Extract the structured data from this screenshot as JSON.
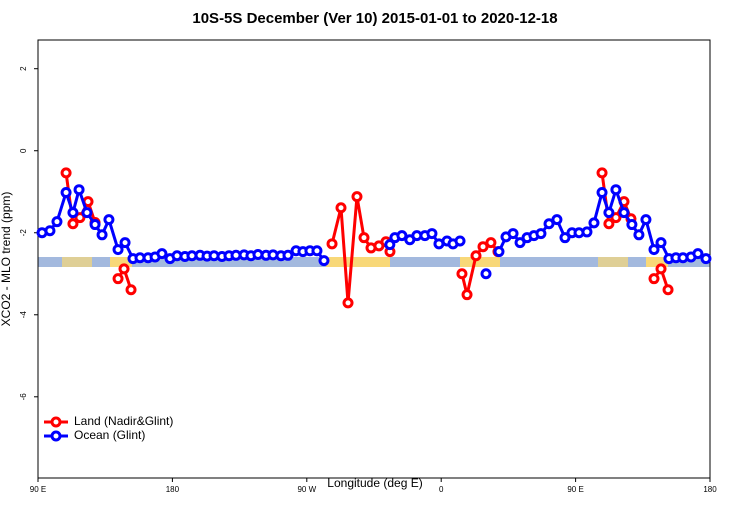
{
  "chart_data": {
    "type": "line",
    "title": "10S-5S December (Ver 10)   2015-01-01 to 2020-12-18",
    "x_label": "Longitude (deg E)",
    "y_label": "XCO2 - MLO trend (ppm)",
    "xlim": [
      90,
      540
    ],
    "xticks": [
      {
        "value": 90,
        "label": "90 E"
      },
      180,
      {
        "value": 270,
        "label": "90 W"
      },
      {
        "value": 360,
        "label": "0"
      },
      {
        "value": 450,
        "label": "90 E"
      },
      {
        "value": 540,
        "label": "180"
      }
    ],
    "ylim": [
      -7.98,
      2.7
    ],
    "yticks": [
      2,
      0,
      -2,
      -4,
      -6
    ],
    "legend": "bottom-left",
    "series": [
      {
        "name": "Land (Nadir&Glint)",
        "color": "#ff0000",
        "x": [
          108.8,
          113.4,
          118.1,
          123.5,
          128.2,
          null,
          143.6,
          147.6,
          152.3,
          null,
          286.9,
          292.9,
          297.6,
          303.6,
          308.3,
          313.0,
          318.3,
          323.0,
          325.7,
          null,
          373.9,
          377.3,
          383.3,
          388.0,
          393.3,
          398.0,
          null,
          467.7,
          472.3,
          477.0,
          482.4,
          487.1,
          null,
          502.5,
          507.2,
          511.9
        ],
        "values": [
          -0.54,
          -1.78,
          -1.63,
          -1.24,
          -1.75,
          null,
          -3.12,
          -2.88,
          -3.39,
          null,
          -2.27,
          -1.39,
          -3.71,
          -1.12,
          -2.12,
          -2.37,
          -2.32,
          -2.22,
          -2.46,
          null,
          -3.0,
          -3.51,
          -2.56,
          -2.34,
          -2.24,
          -2.46,
          null,
          -0.54,
          -1.78,
          -1.63,
          -1.24,
          -1.66,
          null,
          -3.12,
          -2.88,
          -3.39
        ]
      },
      {
        "name": "Ocean (Glint)",
        "color": "#0000ff",
        "x": [
          92.7,
          98.0,
          102.7,
          108.8,
          113.4,
          117.5,
          122.8,
          128.2,
          132.9,
          137.5,
          143.6,
          148.3,
          153.6,
          158.3,
          163.7,
          168.4,
          173.0,
          178.4,
          183.1,
          188.4,
          193.1,
          198.5,
          203.2,
          207.9,
          213.2,
          217.9,
          222.6,
          228.0,
          232.6,
          237.3,
          242.7,
          247.4,
          252.7,
          257.4,
          262.8,
          267.4,
          272.1,
          276.8,
          281.5,
          null,
          325.6,
          329.0,
          333.7,
          339.0,
          343.7,
          349.1,
          353.8,
          358.5,
          363.9,
          367.9,
          372.6,
          null,
          390.0,
          null,
          398.7,
          403.4,
          408.1,
          412.8,
          417.5,
          422.1,
          426.8,
          432.2,
          437.5,
          442.9,
          447.6,
          452.3,
          457.6,
          462.3,
          467.7,
          472.3,
          477.0,
          482.4,
          487.7,
          492.4,
          497.1,
          502.5,
          507.2,
          512.5,
          517.2,
          521.9,
          527.3,
          531.9,
          537.3
        ],
        "values": [
          -2.0,
          -1.95,
          -1.73,
          -1.02,
          -1.51,
          -0.95,
          -1.51,
          -1.8,
          -2.05,
          -1.68,
          -2.41,
          -2.24,
          -2.63,
          -2.61,
          -2.61,
          -2.59,
          -2.51,
          -2.63,
          -2.56,
          -2.58,
          -2.56,
          -2.55,
          -2.57,
          -2.56,
          -2.58,
          -2.56,
          -2.55,
          -2.54,
          -2.56,
          -2.53,
          -2.55,
          -2.54,
          -2.56,
          -2.55,
          -2.44,
          -2.46,
          -2.44,
          -2.44,
          -2.68,
          null,
          -2.29,
          -2.12,
          -2.07,
          -2.17,
          -2.07,
          -2.07,
          -2.02,
          -2.27,
          -2.2,
          -2.27,
          -2.2,
          null,
          -3.0,
          null,
          -2.46,
          -2.1,
          -2.02,
          -2.24,
          -2.12,
          -2.07,
          -2.02,
          -1.78,
          -1.68,
          -2.12,
          -2.0,
          -2.0,
          -1.98,
          -1.76,
          -1.02,
          -1.51,
          -0.95,
          -1.51,
          -1.8,
          -2.05,
          -1.68,
          -2.41,
          -2.24,
          -2.63,
          -2.61,
          -2.61,
          -2.59,
          -2.51,
          -2.63
        ]
      }
    ]
  }
}
